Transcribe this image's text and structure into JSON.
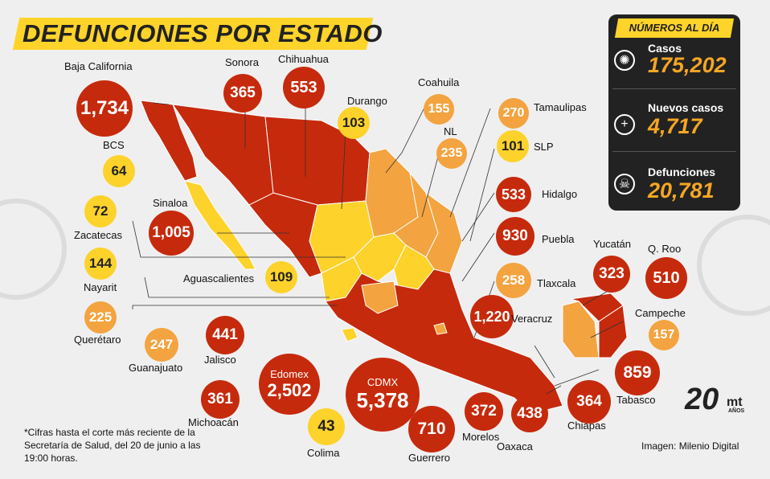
{
  "title": "DEFUNCIONES POR ESTADO",
  "panel": {
    "title": "NÚMEROS AL DÍA",
    "stats": [
      {
        "label": "Casos",
        "value": "175,202",
        "icon": "virus-icon"
      },
      {
        "label": "Nuevos casos",
        "value": "4,717",
        "icon": "plus-circle-icon"
      },
      {
        "label": "Defunciones",
        "value": "20,781",
        "icon": "skull-icon"
      }
    ]
  },
  "states": [
    {
      "name": "Baja California",
      "value": "1,734",
      "color": "red"
    },
    {
      "name": "Sonora",
      "value": "365",
      "color": "red"
    },
    {
      "name": "Chihuahua",
      "value": "553",
      "color": "red"
    },
    {
      "name": "Durango",
      "value": "103",
      "color": "yellow"
    },
    {
      "name": "Coahuila",
      "value": "155",
      "color": "orange"
    },
    {
      "name": "Tamaulipas",
      "value": "270",
      "color": "orange"
    },
    {
      "name": "NL",
      "value": "235",
      "color": "orange"
    },
    {
      "name": "SLP",
      "value": "101",
      "color": "yellow"
    },
    {
      "name": "BCS",
      "value": "64",
      "color": "yellow"
    },
    {
      "name": "Hidalgo",
      "value": "533",
      "color": "red"
    },
    {
      "name": "Zacatecas",
      "value": "72",
      "color": "yellow"
    },
    {
      "name": "Sinaloa",
      "value": "1,005",
      "color": "red"
    },
    {
      "name": "Puebla",
      "value": "930",
      "color": "red"
    },
    {
      "name": "Nayarit",
      "value": "144",
      "color": "yellow"
    },
    {
      "name": "Aguascalientes",
      "value": "109",
      "color": "yellow"
    },
    {
      "name": "Tlaxcala",
      "value": "258",
      "color": "orange"
    },
    {
      "name": "Yucatán",
      "value": "323",
      "color": "red"
    },
    {
      "name": "Q. Roo",
      "value": "510",
      "color": "red"
    },
    {
      "name": "Querétaro",
      "value": "225",
      "color": "orange"
    },
    {
      "name": "Veracruz",
      "value": "1,220",
      "color": "red"
    },
    {
      "name": "Campeche",
      "value": "157",
      "color": "orange"
    },
    {
      "name": "Guanajuato",
      "value": "247",
      "color": "orange"
    },
    {
      "name": "Jalisco",
      "value": "441",
      "color": "red"
    },
    {
      "name": "Edomex",
      "value": "2,502",
      "color": "red"
    },
    {
      "name": "CDMX",
      "value": "5,378",
      "color": "red"
    },
    {
      "name": "Tabasco",
      "value": "859",
      "color": "red"
    },
    {
      "name": "Michoacán",
      "value": "361",
      "color": "red"
    },
    {
      "name": "Colima",
      "value": "43",
      "color": "yellow"
    },
    {
      "name": "Guerrero",
      "value": "710",
      "color": "red"
    },
    {
      "name": "Morelos",
      "value": "372",
      "color": "red"
    },
    {
      "name": "Oaxaca",
      "value": "438",
      "color": "red"
    },
    {
      "name": "Chiapas",
      "value": "364",
      "color": "red"
    }
  ],
  "note": "*Cifras hasta el corte más reciente de la Secretaría de Salud, del 20 de junio a las 19:00 horas.",
  "credit": "Imagen: Milenio Digital",
  "logo": {
    "number": "20",
    "brand": "mt",
    "sub": "AÑOS"
  },
  "colors": {
    "red": "#c62a0c",
    "orange": "#f3a33f",
    "yellow": "#fdd22b",
    "panel": "#222222",
    "accent": "#ffd42a"
  }
}
